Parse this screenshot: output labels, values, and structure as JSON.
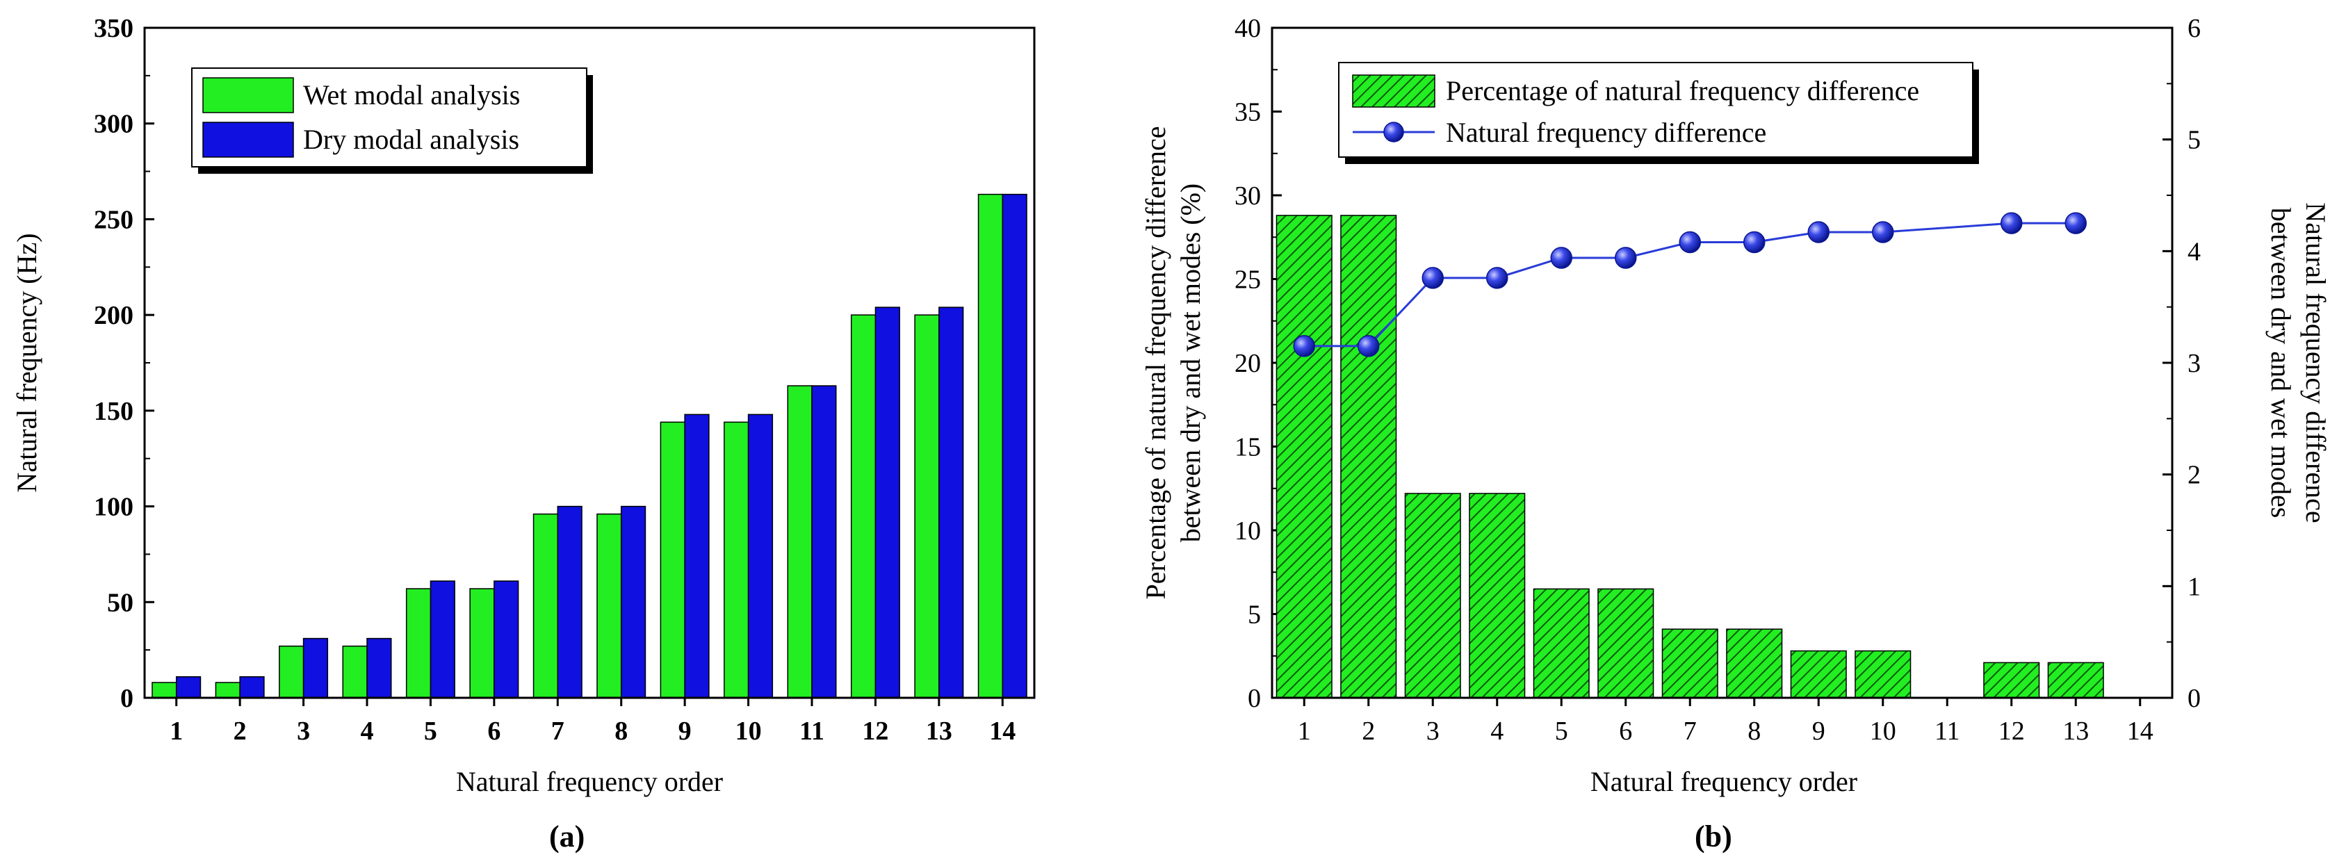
{
  "chart_data": [
    {
      "type": "bar",
      "panel_label": "(a)",
      "title": "",
      "xlabel": "Natural frequency order",
      "ylabel": "Natural frequency (Hz)",
      "categories": [
        "1",
        "2",
        "3",
        "4",
        "5",
        "6",
        "7",
        "8",
        "9",
        "10",
        "11",
        "12",
        "13",
        "14"
      ],
      "ylim": [
        0,
        350
      ],
      "yticks": [
        "0",
        "50",
        "100",
        "150",
        "200",
        "250",
        "300",
        "350"
      ],
      "series": [
        {
          "name": "Wet modal analysis",
          "color": "#22ee22",
          "values": [
            8,
            8,
            27,
            27,
            57,
            57,
            96,
            96,
            144,
            144,
            163,
            200,
            200,
            263
          ]
        },
        {
          "name": "Dry modal analysis",
          "color": "#1010e0",
          "values": [
            11,
            11,
            31,
            31,
            61,
            61,
            100,
            100,
            148,
            148,
            163,
            204,
            204,
            263
          ]
        }
      ],
      "legend": {
        "position": "top-left",
        "entries": [
          "Wet modal analysis",
          "Dry modal analysis"
        ]
      }
    },
    {
      "type": "bar+line",
      "panel_label": "(b)",
      "title": "",
      "xlabel": "Natural frequency order",
      "ylabel_left": [
        "Percentage of natural frequency difference",
        "between dry and wet modes (%)"
      ],
      "ylabel_right": [
        "Natural frequency difference",
        "between dry and wet modes"
      ],
      "categories": [
        "1",
        "2",
        "3",
        "4",
        "5",
        "6",
        "7",
        "8",
        "9",
        "10",
        "11",
        "12",
        "13",
        "14"
      ],
      "ylim_left": [
        0,
        40
      ],
      "yticks_left": [
        "0",
        "5",
        "10",
        "15",
        "20",
        "25",
        "30",
        "35",
        "40"
      ],
      "ylim_right": [
        0,
        6
      ],
      "yticks_right": [
        "0",
        "1",
        "2",
        "3",
        "4",
        "5",
        "6"
      ],
      "series": [
        {
          "name": "Percentage of natural frequency difference",
          "kind": "bar",
          "axis": "left",
          "color": "#22ee22",
          "hatch": true,
          "values": [
            28.8,
            28.8,
            12.2,
            12.2,
            6.5,
            6.5,
            4.1,
            4.1,
            2.8,
            2.8,
            0,
            2.1,
            2.1,
            0
          ]
        },
        {
          "name": "Natural frequency difference",
          "kind": "line",
          "axis": "right",
          "color": "#2a3cd8",
          "x": [
            "1",
            "2",
            "3",
            "4",
            "5",
            "6",
            "7",
            "8",
            "9",
            "10",
            "12",
            "13"
          ],
          "values": [
            3.15,
            3.15,
            3.76,
            3.76,
            3.94,
            3.94,
            4.08,
            4.08,
            4.17,
            4.17,
            4.25,
            4.25
          ]
        }
      ],
      "legend": {
        "position": "top",
        "entries": [
          "Percentage of natural frequency difference",
          "Natural frequency difference"
        ]
      }
    }
  ]
}
